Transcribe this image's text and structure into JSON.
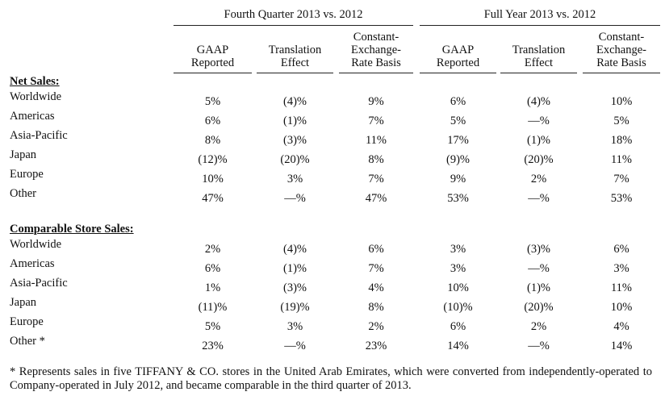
{
  "header": {
    "groups": [
      "Fourth Quarter 2013 vs. 2012",
      "Full Year 2013 vs. 2012"
    ],
    "columns": [
      [
        "GAAP",
        "Reported"
      ],
      [
        "Translation",
        "Effect"
      ],
      [
        "Constant-",
        "Exchange-",
        "Rate Basis"
      ],
      [
        "GAAP",
        "Reported"
      ],
      [
        "Translation",
        "Effect"
      ],
      [
        "Constant-",
        "Exchange-",
        "Rate Basis"
      ]
    ]
  },
  "sections": [
    {
      "title": "Net Sales:",
      "rows": [
        {
          "label": "Worldwide",
          "values": [
            "5%",
            "(4)%",
            "9%",
            "6%",
            "(4)%",
            "10%"
          ]
        },
        {
          "label": "Americas",
          "values": [
            "6%",
            "(1)%",
            "7%",
            "5%",
            "—%",
            "5%"
          ]
        },
        {
          "label": "Asia-Pacific",
          "values": [
            "8%",
            "(3)%",
            "11%",
            "17%",
            "(1)%",
            "18%"
          ]
        },
        {
          "label": "Japan",
          "values": [
            "(12)%",
            "(20)%",
            "8%",
            "(9)%",
            "(20)%",
            "11%"
          ]
        },
        {
          "label": "Europe",
          "values": [
            "10%",
            "3%",
            "7%",
            "9%",
            "2%",
            "7%"
          ]
        },
        {
          "label": "Other",
          "values": [
            "47%",
            "—%",
            "47%",
            "53%",
            "—%",
            "53%"
          ]
        }
      ]
    },
    {
      "title": "Comparable Store Sales:",
      "rows": [
        {
          "label": "Worldwide",
          "values": [
            "2%",
            "(4)%",
            "6%",
            "3%",
            "(3)%",
            "6%"
          ]
        },
        {
          "label": "Americas",
          "values": [
            "6%",
            "(1)%",
            "7%",
            "3%",
            "—%",
            "3%"
          ]
        },
        {
          "label": "Asia-Pacific",
          "values": [
            "1%",
            "(3)%",
            "4%",
            "10%",
            "(1)%",
            "11%"
          ]
        },
        {
          "label": "Japan",
          "values": [
            "(11)%",
            "(19)%",
            "8%",
            "(10)%",
            "(20)%",
            "10%"
          ]
        },
        {
          "label": "Europe",
          "values": [
            "5%",
            "3%",
            "2%",
            "6%",
            "2%",
            "4%"
          ]
        },
        {
          "label": "Other *",
          "values": [
            "23%",
            "—%",
            "23%",
            "14%",
            "—%",
            "14%"
          ]
        }
      ]
    }
  ],
  "footnote": "* Represents sales in five TIFFANY & CO. stores in the United Arab Emirates, which were converted from independently-operated to Company-operated in July 2012, and became comparable in the third quarter of 2013."
}
